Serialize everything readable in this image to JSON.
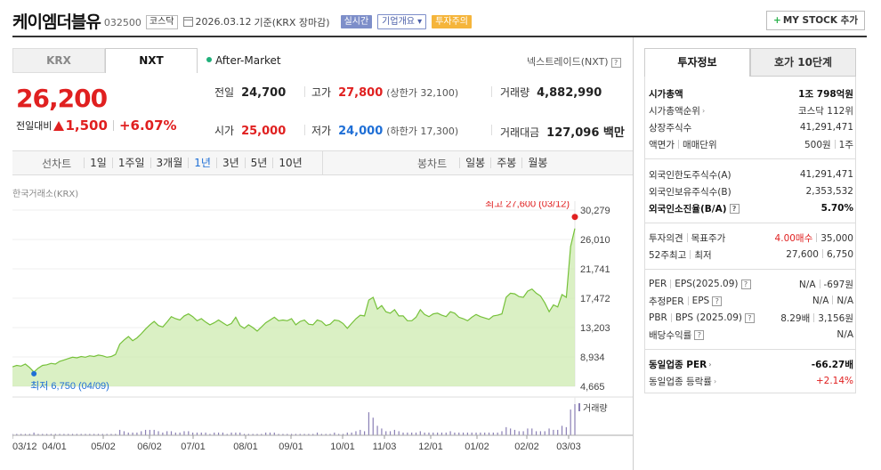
{
  "header": {
    "name": "케이엠더블유",
    "code": "032500",
    "market": "코스닥",
    "date": "2026.03.12",
    "date_suffix": "기준(KRX 장마감)",
    "badge_realtime": "실시간",
    "badge_corp": "기업개요",
    "badge_corp_arrow": "▾",
    "badge_warn": "투자주의",
    "mystock_label": "MY STOCK 추가",
    "mystock_plus": "+"
  },
  "market_tabs": [
    {
      "label": "KRX",
      "selected": false
    },
    {
      "label": "NXT",
      "selected": true
    }
  ],
  "after_market": "After-Market",
  "nxt_label": "넥스트레이드(NXT)",
  "help_glyph": "?",
  "price": {
    "current": "26,200",
    "change_label": "전일대비",
    "change": "1,500",
    "change_pct": "+6.07%"
  },
  "quotes": {
    "prev_close_label": "전일",
    "prev_close": "24,700",
    "high_label": "고가",
    "high": "27,800",
    "upper_limit": "(상한가 32,100)",
    "volume_label": "거래량",
    "volume": "4,882,990",
    "open_label": "시가",
    "open": "25,000",
    "low_label": "저가",
    "low": "24,000",
    "lower_limit": "(하한가 17,300)",
    "amount_label": "거래대금",
    "amount": "127,096 백만"
  },
  "period_bar": {
    "line_title": "선차트",
    "line_options": [
      {
        "label": "1일",
        "selected": false
      },
      {
        "label": "1주일",
        "selected": false
      },
      {
        "label": "3개월",
        "selected": false
      },
      {
        "label": "1년",
        "selected": true
      },
      {
        "label": "3년",
        "selected": false
      },
      {
        "label": "5년",
        "selected": false
      },
      {
        "label": "10년",
        "selected": false
      }
    ],
    "candle_title": "봉차트",
    "candle_options": [
      {
        "label": "일봉",
        "selected": false
      },
      {
        "label": "주봉",
        "selected": false
      },
      {
        "label": "월봉",
        "selected": false
      }
    ]
  },
  "chart_source": "한국거래소(KRX)",
  "chart_data": {
    "type": "area",
    "y_ticks": [
      "30,279",
      "26,010",
      "21,741",
      "17,472",
      "13,203",
      "8,934",
      "4,665"
    ],
    "ylim": [
      4665,
      30279
    ],
    "x_ticks": [
      "03/12",
      "04/01",
      "05/02",
      "06/02",
      "07/01",
      "08/01",
      "09/01",
      "10/01",
      "11/03",
      "12/01",
      "01/02",
      "02/02",
      "03/03"
    ],
    "max_label": "최고 27,600 (03/12)",
    "min_label": "최저 6,750 (04/09)",
    "volume_label": "거래량",
    "series": [
      {
        "values": [
          7500,
          7700,
          7600,
          7900,
          7400,
          6750,
          7300,
          7700,
          7800,
          8000,
          7900,
          8300,
          8500,
          8700,
          8900,
          8800,
          9000,
          8900,
          9100,
          9000,
          9200,
          9100,
          8900,
          9000,
          9300,
          10800,
          11400,
          11900,
          11300,
          11700,
          12300,
          13000,
          13600,
          14100,
          13500,
          13300,
          14000,
          14800,
          14500,
          14300,
          14900,
          15200,
          14800,
          14200,
          14500,
          14000,
          13600,
          13900,
          14300,
          13900,
          13500,
          13800,
          14700,
          13500,
          13100,
          13600,
          13200,
          12700,
          13300,
          13900,
          14300,
          14700,
          14200,
          14300,
          14200,
          14500,
          13600,
          14100,
          14300,
          13700,
          13600,
          14300,
          14100,
          13500,
          13700,
          14300,
          14200,
          13800,
          13100,
          13800,
          14500,
          15000,
          14900,
          17200,
          17600,
          15900,
          16400,
          15500,
          15300,
          15800,
          14900,
          14900,
          14200,
          14200,
          14700,
          15800,
          15100,
          14800,
          15200,
          15300,
          15000,
          14800,
          15500,
          15300,
          14700,
          14500,
          14200,
          14700,
          15100,
          14800,
          14600,
          14400,
          14900,
          15000,
          15200,
          17600,
          18200,
          18100,
          17700,
          17600,
          18500,
          18800,
          18200,
          17800,
          16800,
          15500,
          16500,
          16200,
          18000,
          17600,
          25000,
          27600
        ]
      }
    ],
    "volumes": [
      1,
      1,
      1,
      1,
      1,
      2,
      1,
      1,
      1,
      1,
      1,
      1,
      1,
      1,
      1,
      1,
      1,
      1,
      1,
      1,
      1,
      1,
      1,
      1,
      1,
      4,
      3,
      2,
      2,
      2,
      3,
      4,
      4,
      4,
      3,
      2,
      3,
      3,
      2,
      2,
      3,
      3,
      2,
      2,
      2,
      2,
      1,
      2,
      2,
      2,
      1,
      2,
      2,
      2,
      1,
      1,
      1,
      1,
      1,
      2,
      2,
      2,
      1,
      1,
      1,
      1,
      1,
      1,
      1,
      1,
      1,
      2,
      1,
      1,
      1,
      2,
      1,
      1,
      2,
      2,
      3,
      4,
      3,
      17,
      13,
      7,
      5,
      3,
      3,
      4,
      3,
      2,
      2,
      2,
      2,
      3,
      2,
      2,
      2,
      2,
      2,
      2,
      3,
      2,
      2,
      2,
      2,
      2,
      2,
      2,
      2,
      2,
      2,
      2,
      3,
      6,
      5,
      4,
      3,
      3,
      5,
      5,
      3,
      3,
      3,
      5,
      4,
      4,
      7,
      6,
      19,
      23
    ],
    "line_color": "#76c13a",
    "fill_color": "#cdebb0",
    "max_color": "#e02020",
    "min_color": "#1f6fd6"
  },
  "right_tabs": [
    {
      "label": "투자정보",
      "selected": true
    },
    {
      "label": "호가 10단계",
      "selected": false
    }
  ],
  "invest_info": {
    "market_cap_label": "시가총액",
    "market_cap": "1조 798억원",
    "market_cap_rank_label": "시가총액순위",
    "market_cap_rank": "코스닥 112위",
    "shares_label": "상장주식수",
    "shares": "41,291,471",
    "face_value_label": "액면가",
    "unit_label": "매매단위",
    "face_value": "500원",
    "unit": "1주",
    "foreign_limit_label": "외국인한도주식수(A)",
    "foreign_limit": "41,291,471",
    "foreign_hold_label": "외국인보유주식수(B)",
    "foreign_hold": "2,353,532",
    "foreign_ratio_label": "외국인소진율(B/A)",
    "foreign_ratio": "5.70%",
    "opinion_label": "투자의견",
    "target_label": "목표주가",
    "opinion": "4.00매수",
    "target": "35,000",
    "w52_high_label": "52주최고",
    "w52_low_label": "최저",
    "w52_high": "27,600",
    "w52_low": "6,750",
    "per_label": "PER",
    "eps_label": "EPS(2025.09)",
    "per": "N/A",
    "eps": "-697원",
    "est_per_label": "추정PER",
    "est_eps_label": "EPS",
    "est_per": "N/A",
    "est_eps": "N/A",
    "pbr_label": "PBR",
    "bps_label": "BPS (2025.09)",
    "pbr": "8.29배",
    "bps": "3,156원",
    "dividend_label": "배당수익률",
    "dividend": "N/A",
    "sector_per_label": "동일업종 PER",
    "sector_per": "-66.27배",
    "sector_change_label": "동일업종 등락률",
    "sector_change": "+2.14%"
  }
}
